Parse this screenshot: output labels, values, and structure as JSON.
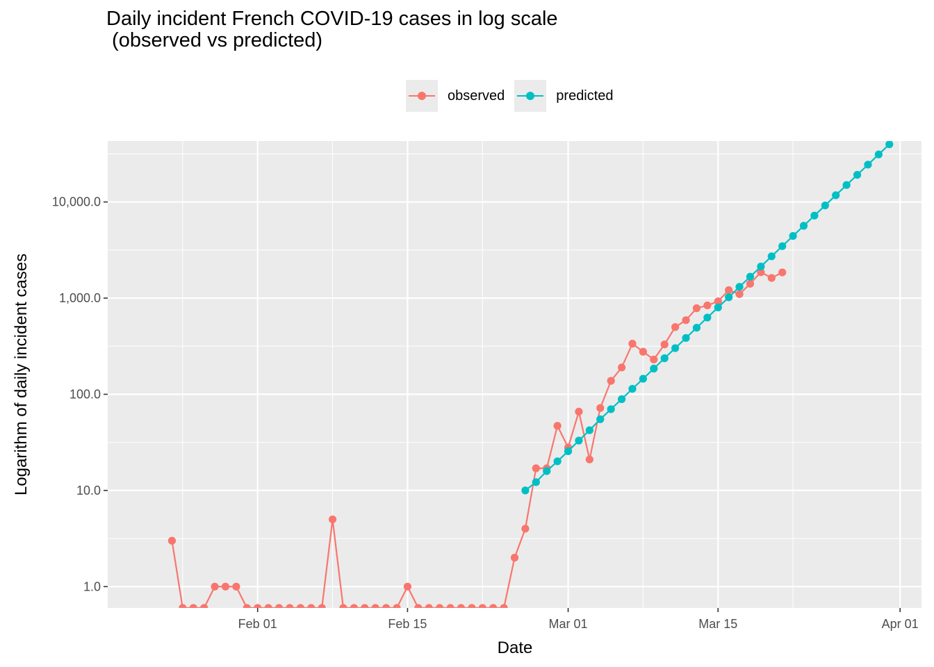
{
  "chart_data": {
    "type": "line",
    "title": "Daily incident French COVID-19 cases in log scale\n (observed vs predicted)",
    "xlabel": "Date",
    "ylabel": "Logarithm of daily incident cases",
    "y_scale": "log10",
    "ylim": [
      0.6,
      43000
    ],
    "xlim": [
      "2020-01-18",
      "2020-04-03"
    ],
    "grid": true,
    "legend_position": "top",
    "x_ticks": [
      {
        "date": "2020-02-01",
        "label": "Feb 01"
      },
      {
        "date": "2020-02-15",
        "label": "Feb 15"
      },
      {
        "date": "2020-03-01",
        "label": "Mar 01"
      },
      {
        "date": "2020-03-15",
        "label": "Mar 15"
      },
      {
        "date": "2020-04-01",
        "label": "Apr 01"
      }
    ],
    "x_minor_ticks": [
      "2020-01-25",
      "2020-02-08",
      "2020-02-22",
      "2020-03-08",
      "2020-03-22"
    ],
    "y_ticks": [
      {
        "value": 1,
        "label": "1.0"
      },
      {
        "value": 10,
        "label": "10.0"
      },
      {
        "value": 100,
        "label": "100.0"
      },
      {
        "value": 1000,
        "label": "1,000.0"
      },
      {
        "value": 10000,
        "label": "10,000.0"
      }
    ],
    "series": [
      {
        "name": "observed",
        "color": "#F8766D",
        "points": [
          [
            "2020-01-24",
            3
          ],
          [
            "2020-01-25",
            0.6
          ],
          [
            "2020-01-26",
            0.6
          ],
          [
            "2020-01-27",
            0.6
          ],
          [
            "2020-01-28",
            1
          ],
          [
            "2020-01-29",
            1
          ],
          [
            "2020-01-30",
            1
          ],
          [
            "2020-01-31",
            0.6
          ],
          [
            "2020-02-01",
            0.6
          ],
          [
            "2020-02-02",
            0.6
          ],
          [
            "2020-02-03",
            0.6
          ],
          [
            "2020-02-04",
            0.6
          ],
          [
            "2020-02-05",
            0.6
          ],
          [
            "2020-02-06",
            0.6
          ],
          [
            "2020-02-07",
            0.6
          ],
          [
            "2020-02-08",
            5
          ],
          [
            "2020-02-09",
            0.6
          ],
          [
            "2020-02-10",
            0.6
          ],
          [
            "2020-02-11",
            0.6
          ],
          [
            "2020-02-12",
            0.6
          ],
          [
            "2020-02-13",
            0.6
          ],
          [
            "2020-02-14",
            0.6
          ],
          [
            "2020-02-15",
            1
          ],
          [
            "2020-02-16",
            0.6
          ],
          [
            "2020-02-17",
            0.6
          ],
          [
            "2020-02-18",
            0.6
          ],
          [
            "2020-02-19",
            0.6
          ],
          [
            "2020-02-20",
            0.6
          ],
          [
            "2020-02-21",
            0.6
          ],
          [
            "2020-02-22",
            0.6
          ],
          [
            "2020-02-23",
            0.6
          ],
          [
            "2020-02-24",
            0.6
          ],
          [
            "2020-02-25",
            2
          ],
          [
            "2020-02-26",
            4
          ],
          [
            "2020-02-27",
            17
          ],
          [
            "2020-02-28",
            17
          ],
          [
            "2020-02-29",
            47
          ],
          [
            "2020-03-01",
            28
          ],
          [
            "2020-03-02",
            66
          ],
          [
            "2020-03-03",
            21
          ],
          [
            "2020-03-04",
            72
          ],
          [
            "2020-03-05",
            138
          ],
          [
            "2020-03-06",
            190
          ],
          [
            "2020-03-07",
            336
          ],
          [
            "2020-03-08",
            277
          ],
          [
            "2020-03-09",
            230
          ],
          [
            "2020-03-10",
            330
          ],
          [
            "2020-03-11",
            500
          ],
          [
            "2020-03-12",
            590
          ],
          [
            "2020-03-13",
            785
          ],
          [
            "2020-03-14",
            840
          ],
          [
            "2020-03-15",
            925
          ],
          [
            "2020-03-16",
            1210
          ],
          [
            "2020-03-17",
            1100
          ],
          [
            "2020-03-18",
            1410
          ],
          [
            "2020-03-19",
            1860
          ],
          [
            "2020-03-20",
            1620
          ],
          [
            "2020-03-21",
            1850
          ]
        ]
      },
      {
        "name": "predicted",
        "color": "#00BFC4",
        "points": [
          [
            "2020-02-26",
            10
          ],
          [
            "2020-02-27",
            12.2
          ],
          [
            "2020-02-28",
            15.9
          ],
          [
            "2020-02-29",
            20.1
          ],
          [
            "2020-03-01",
            25.6
          ],
          [
            "2020-03-02",
            33
          ],
          [
            "2020-03-03",
            42.3
          ],
          [
            "2020-03-04",
            55
          ],
          [
            "2020-03-05",
            70
          ],
          [
            "2020-03-06",
            89
          ],
          [
            "2020-03-07",
            114
          ],
          [
            "2020-03-08",
            145
          ],
          [
            "2020-03-09",
            185
          ],
          [
            "2020-03-10",
            237
          ],
          [
            "2020-03-11",
            302
          ],
          [
            "2020-03-12",
            385
          ],
          [
            "2020-03-13",
            492
          ],
          [
            "2020-03-14",
            628
          ],
          [
            "2020-03-15",
            800
          ],
          [
            "2020-03-16",
            1020
          ],
          [
            "2020-03-17",
            1310
          ],
          [
            "2020-03-18",
            1670
          ],
          [
            "2020-03-19",
            2130
          ],
          [
            "2020-03-20",
            2720
          ],
          [
            "2020-03-21",
            3470
          ],
          [
            "2020-03-22",
            4430
          ],
          [
            "2020-03-23",
            5650
          ],
          [
            "2020-03-24",
            7210
          ],
          [
            "2020-03-25",
            9200
          ],
          [
            "2020-03-26",
            11750
          ],
          [
            "2020-03-27",
            15000
          ],
          [
            "2020-03-28",
            19150
          ],
          [
            "2020-03-29",
            24450
          ],
          [
            "2020-03-30",
            31200
          ],
          [
            "2020-03-31",
            39800
          ]
        ]
      }
    ]
  }
}
